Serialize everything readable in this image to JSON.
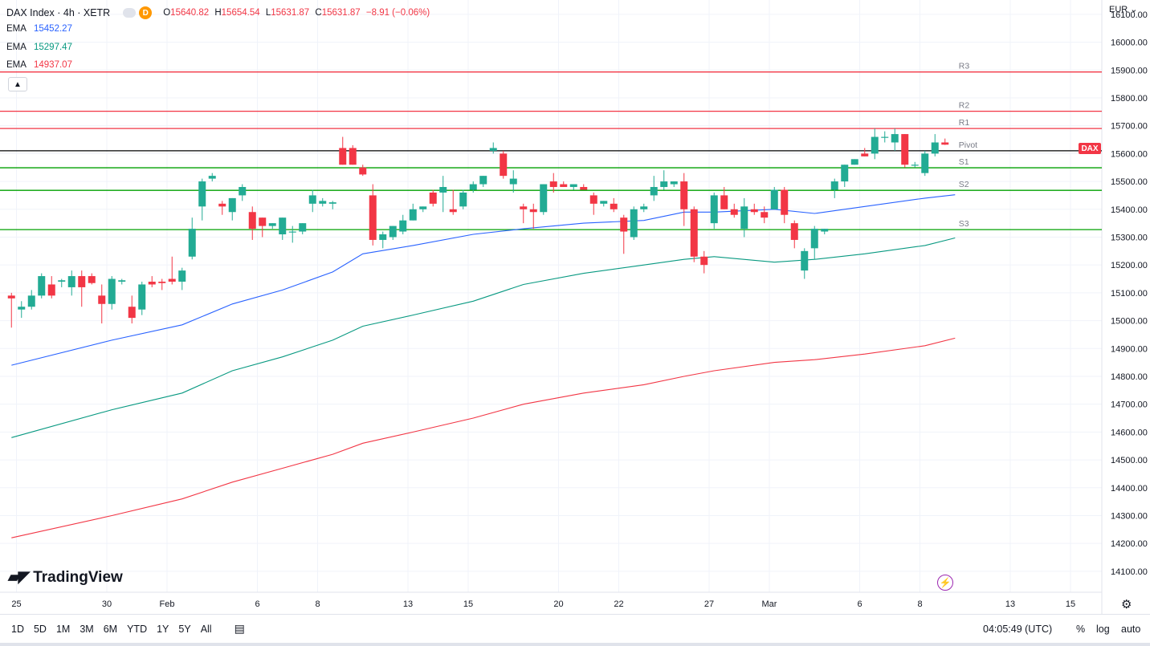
{
  "header": {
    "symbol": "DAX Index · 4h · XETR",
    "interval_badge": "D",
    "ohlc": {
      "o_label": "O",
      "o": "15640.82",
      "h_label": "H",
      "h": "15654.54",
      "l_label": "L",
      "l": "15631.87",
      "c_label": "C",
      "c": "15631.87",
      "change": "−8.91 (−0.06%)"
    }
  },
  "emas": [
    {
      "label": "EMA",
      "value": "15452.27",
      "color": "#2962ff"
    },
    {
      "label": "EMA",
      "value": "15297.47",
      "color": "#089981"
    },
    {
      "label": "EMA",
      "value": "14937.07",
      "color": "#f23645"
    }
  ],
  "collapse_icon": "chevron-up-icon",
  "price_axis": {
    "currency": "EUR"
  },
  "price_tag": "DAX",
  "logo_text": "TradingView",
  "timeframes": [
    "1D",
    "5D",
    "1M",
    "3M",
    "6M",
    "YTD",
    "1Y",
    "5Y",
    "All"
  ],
  "clock": "04:05:49 (UTC)",
  "scale_options": {
    "percent": "%",
    "log": "log",
    "auto": "auto"
  },
  "colors": {
    "up": "#22ab94",
    "down": "#f23645",
    "resistance": "#f23645",
    "support": "#089981",
    "pivot": "#000000",
    "ema_fast": "#2962ff",
    "ema_mid": "#089981",
    "ema_slow": "#f23645"
  },
  "chart_data": {
    "type": "candlestick",
    "title": "DAX Index · 4h · XETR",
    "ylim": [
      14050,
      16140
    ],
    "y_ticks": [
      16100,
      16000,
      15900,
      15800,
      15700,
      15600,
      15500,
      15400,
      15300,
      15200,
      15100,
      15000,
      14900,
      14800,
      14700,
      14600,
      14500,
      14400,
      14300,
      14200,
      14100
    ],
    "x_ticks": [
      {
        "label": "25",
        "bar": 0.5
      },
      {
        "label": "30",
        "bar": 9.5
      },
      {
        "label": "Feb",
        "bar": 15.5
      },
      {
        "label": "6",
        "bar": 24.5
      },
      {
        "label": "8",
        "bar": 30.5
      },
      {
        "label": "13",
        "bar": 39.5
      },
      {
        "label": "15",
        "bar": 45.5
      },
      {
        "label": "20",
        "bar": 54.5
      },
      {
        "label": "22",
        "bar": 60.5
      },
      {
        "label": "27",
        "bar": 69.5
      },
      {
        "label": "Mar",
        "bar": 75.5
      },
      {
        "label": "6",
        "bar": 84.5
      },
      {
        "label": "8",
        "bar": 90.5
      },
      {
        "label": "13",
        "bar": 99.5
      },
      {
        "label": "15",
        "bar": 105.5
      }
    ],
    "candles": [
      [
        15090,
        15100,
        14975,
        15080
      ],
      [
        15040,
        15070,
        15010,
        15050
      ],
      [
        15050,
        15110,
        15040,
        15090
      ],
      [
        15090,
        15170,
        15080,
        15160
      ],
      [
        15130,
        15160,
        15080,
        15090
      ],
      [
        15140,
        15150,
        15120,
        15145
      ],
      [
        15120,
        15180,
        15090,
        15160
      ],
      [
        15160,
        15180,
        15050,
        15120
      ],
      [
        15160,
        15170,
        15130,
        15135
      ],
      [
        15090,
        15130,
        14990,
        15060
      ],
      [
        15060,
        15160,
        15040,
        15150
      ],
      [
        15140,
        15150,
        15130,
        15145
      ],
      [
        15050,
        15090,
        14990,
        15010
      ],
      [
        15040,
        15140,
        15020,
        15130
      ],
      [
        15140,
        15160,
        15120,
        15130
      ],
      [
        15140,
        15150,
        15110,
        15135
      ],
      [
        15150,
        15230,
        15130,
        15140
      ],
      [
        15140,
        15190,
        15110,
        15180
      ],
      [
        15230,
        15370,
        15220,
        15330
      ],
      [
        15410,
        15510,
        15360,
        15500
      ],
      [
        15510,
        15530,
        15500,
        15520
      ],
      [
        15420,
        15430,
        15380,
        15410
      ],
      [
        15390,
        15420,
        15360,
        15440
      ],
      [
        15450,
        15490,
        15430,
        15480
      ],
      [
        15390,
        15410,
        15290,
        15330
      ],
      [
        15370,
        15360,
        15300,
        15340
      ],
      [
        15340,
        15350,
        15330,
        15350
      ],
      [
        15310,
        15370,
        15290,
        15370
      ],
      [
        15320,
        15340,
        15280,
        15320
      ],
      [
        15320,
        15340,
        15310,
        15350
      ],
      [
        15420,
        15470,
        15390,
        15450
      ],
      [
        15420,
        15440,
        15410,
        15430
      ],
      [
        15420,
        15430,
        15400,
        15425
      ],
      [
        15620,
        15660,
        15580,
        15560
      ],
      [
        15620,
        15630,
        15580,
        15560
      ],
      [
        15550,
        15560,
        15520,
        15525
      ],
      [
        15450,
        15490,
        15270,
        15290
      ],
      [
        15290,
        15320,
        15260,
        15310
      ],
      [
        15300,
        15340,
        15290,
        15340
      ],
      [
        15320,
        15380,
        15310,
        15360
      ],
      [
        15360,
        15420,
        15360,
        15400
      ],
      [
        15400,
        15410,
        15390,
        15410
      ],
      [
        15460,
        15470,
        15410,
        15420
      ],
      [
        15460,
        15520,
        15390,
        15480
      ],
      [
        15400,
        15470,
        15380,
        15390
      ],
      [
        15410,
        15470,
        15400,
        15460
      ],
      [
        15470,
        15500,
        15460,
        15490
      ],
      [
        15490,
        15510,
        15480,
        15520
      ],
      [
        15610,
        15640,
        15600,
        15620
      ],
      [
        15600,
        15610,
        15510,
        15520
      ],
      [
        15490,
        15540,
        15460,
        15510
      ],
      [
        15410,
        15420,
        15350,
        15400
      ],
      [
        15400,
        15420,
        15330,
        15390
      ],
      [
        15390,
        15490,
        15380,
        15490
      ],
      [
        15500,
        15530,
        15460,
        15480
      ],
      [
        15490,
        15500,
        15480,
        15480
      ],
      [
        15480,
        15490,
        15470,
        15490
      ],
      [
        15480,
        15490,
        15470,
        15470
      ],
      [
        15450,
        15460,
        15380,
        15420
      ],
      [
        15420,
        15430,
        15410,
        15430
      ],
      [
        15420,
        15440,
        15390,
        15400
      ],
      [
        15370,
        15380,
        15240,
        15320
      ],
      [
        15300,
        15410,
        15290,
        15400
      ],
      [
        15400,
        15420,
        15390,
        15410
      ],
      [
        15450,
        15520,
        15430,
        15480
      ],
      [
        15480,
        15540,
        15470,
        15500
      ],
      [
        15490,
        15500,
        15480,
        15500
      ],
      [
        15500,
        15530,
        15340,
        15400
      ],
      [
        15400,
        15410,
        15210,
        15230
      ],
      [
        15230,
        15250,
        15170,
        15200
      ],
      [
        15350,
        15460,
        15330,
        15450
      ],
      [
        15450,
        15480,
        15400,
        15400
      ],
      [
        15400,
        15420,
        15370,
        15380
      ],
      [
        15330,
        15440,
        15300,
        15410
      ],
      [
        15400,
        15420,
        15380,
        15390
      ],
      [
        15390,
        15410,
        15350,
        15370
      ],
      [
        15400,
        15480,
        15400,
        15470
      ],
      [
        15470,
        15480,
        15350,
        15380
      ],
      [
        15350,
        15360,
        15260,
        15290
      ],
      [
        15180,
        15260,
        15150,
        15250
      ],
      [
        15260,
        15340,
        15220,
        15330
      ],
      [
        15320,
        15330,
        15310,
        15330
      ],
      [
        15470,
        15510,
        15440,
        15500
      ],
      [
        15500,
        15560,
        15480,
        15560
      ],
      [
        15560,
        15580,
        15560,
        15580
      ],
      [
        15600,
        15620,
        15590,
        15590
      ],
      [
        15600,
        15690,
        15580,
        15660
      ],
      [
        15660,
        15680,
        15640,
        15660
      ],
      [
        15640,
        15690,
        15610,
        15670
      ],
      [
        15670,
        15670,
        15550,
        15560
      ],
      [
        15560,
        15570,
        15550,
        15560
      ],
      [
        15530,
        15610,
        15520,
        15600
      ],
      [
        15600,
        15670,
        15590,
        15640
      ],
      [
        15640,
        15654,
        15631,
        15632
      ]
    ],
    "levels": [
      {
        "name": "R3",
        "value": 15893,
        "kind": "resistance"
      },
      {
        "name": "R2",
        "value": 15752,
        "kind": "resistance"
      },
      {
        "name": "R1",
        "value": 15690,
        "kind": "resistance"
      },
      {
        "name": "Pivot",
        "value": 15610,
        "kind": "pivot"
      },
      {
        "name": "S1",
        "value": 15549,
        "kind": "support"
      },
      {
        "name": "S2",
        "value": 15468,
        "kind": "support"
      },
      {
        "name": "S3",
        "value": 15327,
        "kind": "support"
      }
    ],
    "series": [
      {
        "name": "EMA",
        "color": "#2962ff",
        "points": [
          [
            0,
            14840
          ],
          [
            10,
            14930
          ],
          [
            17,
            14985
          ],
          [
            22,
            15060
          ],
          [
            27,
            15110
          ],
          [
            32,
            15175
          ],
          [
            35,
            15240
          ],
          [
            40,
            15270
          ],
          [
            46,
            15310
          ],
          [
            51,
            15330
          ],
          [
            57,
            15350
          ],
          [
            63,
            15360
          ],
          [
            67,
            15390
          ],
          [
            70,
            15390
          ],
          [
            76,
            15400
          ],
          [
            80,
            15385
          ],
          [
            85,
            15410
          ],
          [
            91,
            15440
          ],
          [
            94,
            15452
          ]
        ]
      },
      {
        "name": "EMA",
        "color": "#089981",
        "points": [
          [
            0,
            14580
          ],
          [
            10,
            14680
          ],
          [
            17,
            14740
          ],
          [
            22,
            14820
          ],
          [
            27,
            14870
          ],
          [
            32,
            14930
          ],
          [
            35,
            14980
          ],
          [
            40,
            15020
          ],
          [
            46,
            15070
          ],
          [
            51,
            15130
          ],
          [
            57,
            15170
          ],
          [
            63,
            15200
          ],
          [
            67,
            15220
          ],
          [
            70,
            15230
          ],
          [
            76,
            15210
          ],
          [
            80,
            15220
          ],
          [
            85,
            15240
          ],
          [
            91,
            15270
          ],
          [
            94,
            15297
          ]
        ]
      },
      {
        "name": "EMA",
        "color": "#f23645",
        "points": [
          [
            0,
            14220
          ],
          [
            10,
            14300
          ],
          [
            17,
            14360
          ],
          [
            22,
            14420
          ],
          [
            27,
            14470
          ],
          [
            32,
            14520
          ],
          [
            35,
            14560
          ],
          [
            40,
            14600
          ],
          [
            46,
            14650
          ],
          [
            51,
            14700
          ],
          [
            57,
            14740
          ],
          [
            63,
            14770
          ],
          [
            67,
            14800
          ],
          [
            70,
            14820
          ],
          [
            76,
            14850
          ],
          [
            80,
            14860
          ],
          [
            85,
            14880
          ],
          [
            91,
            14910
          ],
          [
            94,
            14937
          ]
        ]
      }
    ]
  }
}
